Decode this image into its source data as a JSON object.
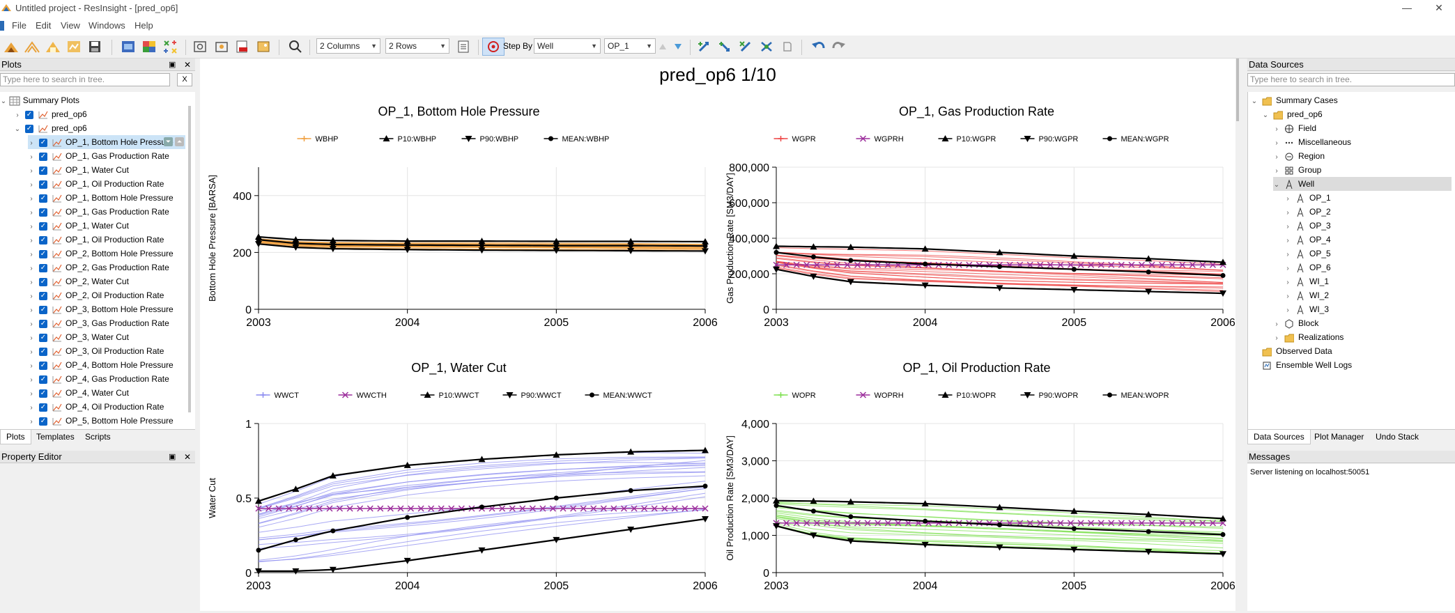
{
  "window": {
    "title": "Untitled project - ResInsight - [pred_op6]",
    "minimize": "—",
    "close": "✕"
  },
  "menu": [
    "File",
    "Edit",
    "View",
    "Windows",
    "Help"
  ],
  "toolbar": {
    "columns": "2 Columns",
    "rows": "2 Rows",
    "step_by_label": "Step By",
    "step_by_value": "Well",
    "well_value": "OP_1"
  },
  "plots_panel": {
    "title": "Plots",
    "search_placeholder": "Type here to search in tree.",
    "clear": "X",
    "root": "Summary Plots",
    "items": [
      {
        "label": "pred_op6",
        "level": 1,
        "expanded": false
      },
      {
        "label": "pred_op6",
        "level": 1,
        "expanded": true
      },
      {
        "label": "OP_1, Bottom Hole Pressure",
        "level": 2,
        "selected": true
      },
      {
        "label": "OP_1, Gas Production Rate",
        "level": 2
      },
      {
        "label": "OP_1, Water Cut",
        "level": 2
      },
      {
        "label": "OP_1, Oil Production Rate",
        "level": 2
      },
      {
        "label": "OP_1, Bottom Hole Pressure",
        "level": 2
      },
      {
        "label": "OP_1, Gas Production Rate",
        "level": 2
      },
      {
        "label": "OP_1, Water Cut",
        "level": 2
      },
      {
        "label": "OP_1, Oil Production Rate",
        "level": 2
      },
      {
        "label": "OP_2, Bottom Hole Pressure",
        "level": 2
      },
      {
        "label": "OP_2, Gas Production Rate",
        "level": 2
      },
      {
        "label": "OP_2, Water Cut",
        "level": 2
      },
      {
        "label": "OP_2, Oil Production Rate",
        "level": 2
      },
      {
        "label": "OP_3, Bottom Hole Pressure",
        "level": 2
      },
      {
        "label": "OP_3, Gas Production Rate",
        "level": 2
      },
      {
        "label": "OP_3, Water Cut",
        "level": 2
      },
      {
        "label": "OP_3, Oil Production Rate",
        "level": 2
      },
      {
        "label": "OP_4, Bottom Hole Pressure",
        "level": 2
      },
      {
        "label": "OP_4, Gas Production Rate",
        "level": 2
      },
      {
        "label": "OP_4, Water Cut",
        "level": 2
      },
      {
        "label": "OP_4, Oil Production Rate",
        "level": 2
      },
      {
        "label": "OP_5, Bottom Hole Pressure",
        "level": 2
      }
    ],
    "tabs": [
      "Plots",
      "Templates",
      "Scripts"
    ]
  },
  "property_editor": {
    "title": "Property Editor"
  },
  "data_sources": {
    "title": "Data Sources",
    "search_placeholder": "Type here to search in tree.",
    "items": [
      {
        "label": "Summary Cases",
        "level": 0,
        "icon": "folder-icon",
        "expanded": true
      },
      {
        "label": "pred_op6",
        "level": 1,
        "icon": "folder-icon",
        "expanded": true
      },
      {
        "label": "Field",
        "level": 2,
        "icon": "globe-icon"
      },
      {
        "label": "Miscellaneous",
        "level": 2,
        "icon": "dots-icon"
      },
      {
        "label": "Region",
        "level": 2,
        "icon": "region-icon"
      },
      {
        "label": "Group",
        "level": 2,
        "icon": "group-icon"
      },
      {
        "label": "Well",
        "level": 2,
        "icon": "well-icon",
        "expanded": true,
        "selected": true
      },
      {
        "label": "OP_1",
        "level": 3,
        "icon": "well-icon"
      },
      {
        "label": "OP_2",
        "level": 3,
        "icon": "well-icon"
      },
      {
        "label": "OP_3",
        "level": 3,
        "icon": "well-icon"
      },
      {
        "label": "OP_4",
        "level": 3,
        "icon": "well-icon"
      },
      {
        "label": "OP_5",
        "level": 3,
        "icon": "well-icon"
      },
      {
        "label": "OP_6",
        "level": 3,
        "icon": "well-icon"
      },
      {
        "label": "WI_1",
        "level": 3,
        "icon": "well-icon"
      },
      {
        "label": "WI_2",
        "level": 3,
        "icon": "well-icon"
      },
      {
        "label": "WI_3",
        "level": 3,
        "icon": "well-icon"
      },
      {
        "label": "Block",
        "level": 2,
        "icon": "block-icon"
      },
      {
        "label": "Realizations",
        "level": 2,
        "icon": "folder-icon"
      },
      {
        "label": "Observed Data",
        "level": 0,
        "icon": "folder-icon"
      },
      {
        "label": "Ensemble Well Logs",
        "level": 0,
        "icon": "log-icon"
      }
    ],
    "tabs": [
      "Data Sources",
      "Plot Manager",
      "Undo Stack"
    ]
  },
  "messages": {
    "title": "Messages",
    "text": "Server listening on localhost:50051"
  },
  "page_title": "pred_op6 1/10",
  "chart_data": [
    {
      "type": "line",
      "title": "OP_1, Bottom Hole Pressure",
      "ylabel": "Bottom Hole Pressure [BARSA]",
      "xlim": [
        2003,
        2006
      ],
      "ylim": [
        0,
        500
      ],
      "xticks": [
        2003,
        2004,
        2005,
        2006
      ],
      "yticks": [
        0,
        200,
        400
      ],
      "ytick_labels": [
        "0",
        "200",
        "400"
      ],
      "ensemble_color": "#f0a040",
      "ensemble_count": 20,
      "ensemble_spread": 14,
      "legend": [
        {
          "name": "WBHP",
          "color": "#f0a040",
          "marker": "plus"
        },
        {
          "name": "P10:WBHP",
          "color": "#000000",
          "marker": "triangle-up"
        },
        {
          "name": "P90:WBHP",
          "color": "#000000",
          "marker": "triangle-down"
        },
        {
          "name": "MEAN:WBHP",
          "color": "#000000",
          "marker": "circle"
        }
      ],
      "x": [
        2003,
        2003.25,
        2003.5,
        2004,
        2004.5,
        2005,
        2005.5,
        2006
      ],
      "series": [
        {
          "name": "P10:WBHP",
          "marker": "triangle-up",
          "values": [
            255,
            245,
            242,
            240,
            240,
            239,
            239,
            238
          ]
        },
        {
          "name": "P90:WBHP",
          "marker": "triangle-down",
          "values": [
            230,
            218,
            213,
            210,
            208,
            207,
            206,
            205
          ]
        },
        {
          "name": "MEAN:WBHP",
          "marker": "circle",
          "values": [
            245,
            232,
            228,
            226,
            225,
            224,
            224,
            223
          ]
        }
      ]
    },
    {
      "type": "line",
      "title": "OP_1, Gas Production Rate",
      "ylabel": "Gas Production Rate [SM3/DAY]",
      "xlim": [
        2003,
        2006
      ],
      "ylim": [
        0,
        800000
      ],
      "xticks": [
        2003,
        2004,
        2005,
        2006
      ],
      "yticks": [
        0,
        200000,
        400000,
        600000,
        800000
      ],
      "ytick_labels": [
        "0",
        "200,000",
        "400,000",
        "600,000",
        "800,000"
      ],
      "ensemble_color": "#ee4444",
      "ensemble_count": 20,
      "ensemble_spread": 60000,
      "history": {
        "name": "WGPRH",
        "color": "#9b2d9b",
        "value": 250000
      },
      "legend": [
        {
          "name": "WGPR",
          "color": "#ee4444",
          "marker": "plus"
        },
        {
          "name": "WGPRH",
          "color": "#9b2d9b",
          "marker": "x"
        },
        {
          "name": "P10:WGPR",
          "color": "#000000",
          "marker": "triangle-up"
        },
        {
          "name": "P90:WGPR",
          "color": "#000000",
          "marker": "triangle-down"
        },
        {
          "name": "MEAN:WGPR",
          "color": "#000000",
          "marker": "circle"
        }
      ],
      "x": [
        2003,
        2003.25,
        2003.5,
        2004,
        2004.5,
        2005,
        2005.5,
        2006
      ],
      "series": [
        {
          "name": "P10:WGPR",
          "marker": "triangle-up",
          "values": [
            355000,
            352000,
            350000,
            340000,
            320000,
            300000,
            285000,
            265000
          ]
        },
        {
          "name": "P90:WGPR",
          "marker": "triangle-down",
          "values": [
            225000,
            185000,
            155000,
            135000,
            120000,
            110000,
            100000,
            90000
          ]
        },
        {
          "name": "MEAN:WGPR",
          "marker": "circle",
          "values": [
            320000,
            295000,
            275000,
            255000,
            240000,
            225000,
            210000,
            190000
          ]
        }
      ]
    },
    {
      "type": "line",
      "title": "OP_1, Water Cut",
      "ylabel": "Water Cut",
      "xlim": [
        2003,
        2006
      ],
      "ylim": [
        0,
        1
      ],
      "xticks": [
        2003,
        2004,
        2005,
        2006
      ],
      "yticks": [
        0,
        0.5,
        1
      ],
      "ytick_labels": [
        "0",
        "0.5",
        "1"
      ],
      "ensemble_color": "#8c8cf0",
      "ensemble_count": 22,
      "ensemble_spread": 0.45,
      "history": {
        "name": "WWCTH",
        "color": "#9b2d9b",
        "value": 0.43
      },
      "legend": [
        {
          "name": "WWCT",
          "color": "#8c8cf0",
          "marker": "plus"
        },
        {
          "name": "WWCTH",
          "color": "#9b2d9b",
          "marker": "x"
        },
        {
          "name": "P10:WWCT",
          "color": "#000000",
          "marker": "triangle-up"
        },
        {
          "name": "P90:WWCT",
          "color": "#000000",
          "marker": "triangle-down"
        },
        {
          "name": "MEAN:WWCT",
          "color": "#000000",
          "marker": "circle"
        }
      ],
      "x": [
        2003,
        2003.25,
        2003.5,
        2004,
        2004.5,
        2005,
        2005.5,
        2006
      ],
      "series": [
        {
          "name": "P10:WWCT",
          "marker": "triangle-up",
          "values": [
            0.48,
            0.56,
            0.65,
            0.72,
            0.76,
            0.79,
            0.81,
            0.82
          ]
        },
        {
          "name": "P90:WWCT",
          "marker": "triangle-down",
          "values": [
            0.01,
            0.01,
            0.02,
            0.08,
            0.15,
            0.22,
            0.29,
            0.36
          ]
        },
        {
          "name": "MEAN:WWCT",
          "marker": "circle",
          "values": [
            0.15,
            0.22,
            0.28,
            0.37,
            0.44,
            0.5,
            0.55,
            0.58
          ]
        }
      ]
    },
    {
      "type": "line",
      "title": "OP_1, Oil Production Rate",
      "ylabel": "Oil Production Rate [SM3/DAY]",
      "xlim": [
        2003,
        2006
      ],
      "ylim": [
        0,
        4000
      ],
      "xticks": [
        2003,
        2004,
        2005,
        2006
      ],
      "yticks": [
        0,
        1000,
        2000,
        3000,
        4000
      ],
      "ytick_labels": [
        "0",
        "1,000",
        "2,000",
        "3,000",
        "4,000"
      ],
      "ensemble_color": "#7ee050",
      "ensemble_count": 20,
      "ensemble_spread": 300,
      "history": {
        "name": "WOPRH",
        "color": "#9b2d9b",
        "value": 1330
      },
      "legend": [
        {
          "name": "WOPR",
          "color": "#7ee050",
          "marker": "plus"
        },
        {
          "name": "WOPRH",
          "color": "#9b2d9b",
          "marker": "x"
        },
        {
          "name": "P10:WOPR",
          "color": "#000000",
          "marker": "triangle-up"
        },
        {
          "name": "P90:WOPR",
          "color": "#000000",
          "marker": "triangle-down"
        },
        {
          "name": "MEAN:WOPR",
          "color": "#000000",
          "marker": "circle"
        }
      ],
      "x": [
        2003,
        2003.25,
        2003.5,
        2004,
        2004.5,
        2005,
        2005.5,
        2006
      ],
      "series": [
        {
          "name": "P10:WOPR",
          "marker": "triangle-up",
          "values": [
            1930,
            1920,
            1900,
            1850,
            1750,
            1650,
            1560,
            1450
          ]
        },
        {
          "name": "P90:WOPR",
          "marker": "triangle-down",
          "values": [
            1250,
            1000,
            850,
            750,
            680,
            620,
            560,
            500
          ]
        },
        {
          "name": "MEAN:WOPR",
          "marker": "circle",
          "values": [
            1800,
            1650,
            1500,
            1380,
            1280,
            1180,
            1100,
            1020
          ]
        }
      ]
    }
  ]
}
